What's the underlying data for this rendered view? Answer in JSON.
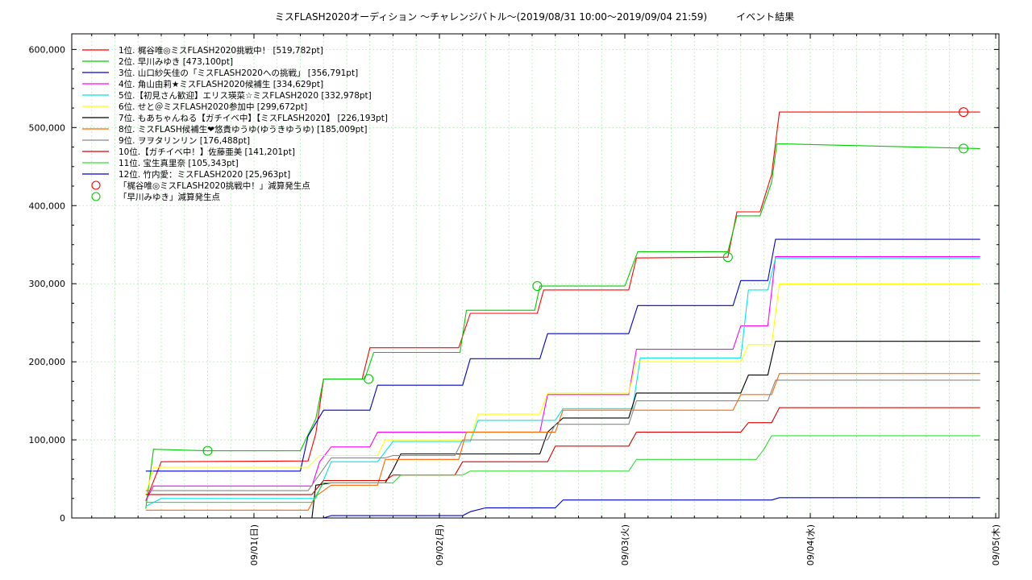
{
  "chart_data": {
    "type": "line",
    "title": "ミスFLASH2020オーディション 〜チャレンジバトル〜(2019/08/31 10:00〜2019/09/04 21:59)　　　イベント結果",
    "xlabel": "",
    "ylabel": "",
    "x_range": [
      "2019-08-31T00:25",
      "2019-09-05T00:25"
    ],
    "x_ticks": [
      {
        "x": "2019-09-01T00:00",
        "label": "09/01(日)"
      },
      {
        "x": "2019-09-02T00:00",
        "label": "09/02(月)"
      },
      {
        "x": "2019-09-03T00:00",
        "label": "09/03(火)"
      },
      {
        "x": "2019-09-04T00:00",
        "label": "09/04(水)"
      },
      {
        "x": "2019-09-05T00:00",
        "label": "09/05(木)"
      }
    ],
    "ylim": [
      0,
      620000
    ],
    "y_ticks": [
      {
        "y": 0,
        "label": "0"
      },
      {
        "y": 100000,
        "label": "100,000"
      },
      {
        "y": 200000,
        "label": "200,000"
      },
      {
        "y": 300000,
        "label": "300,000"
      },
      {
        "y": 400000,
        "label": "400,000"
      },
      {
        "y": 500000,
        "label": "500,000"
      },
      {
        "y": 600000,
        "label": "600,000"
      }
    ],
    "grid": true,
    "legend_position": "top-left",
    "series": [
      {
        "name": "1位. 梶谷唯◎ミスFLASH2020挑戦中！ [519,782pt]",
        "color": "#ff0000",
        "points": [
          [
            "2019-08-31T10:00",
            22000
          ],
          [
            "2019-08-31T12:00",
            72000
          ],
          [
            "2019-09-01T07:00",
            73000
          ],
          [
            "2019-09-01T08:00",
            108000
          ],
          [
            "2019-09-01T09:00",
            178000
          ],
          [
            "2019-09-01T14:00",
            178000
          ],
          [
            "2019-09-01T15:00",
            218000
          ],
          [
            "2019-09-02T02:30",
            218000
          ],
          [
            "2019-09-02T04:00",
            262000
          ],
          [
            "2019-09-02T12:40",
            262000
          ],
          [
            "2019-09-02T13:30",
            292000
          ],
          [
            "2019-09-03T00:30",
            292000
          ],
          [
            "2019-09-03T01:30",
            333000
          ],
          [
            "2019-09-03T13:20",
            334000
          ],
          [
            "2019-09-03T14:30",
            392000
          ],
          [
            "2019-09-03T17:30",
            392000
          ],
          [
            "2019-09-03T19:00",
            440000
          ],
          [
            "2019-09-03T20:00",
            519782
          ],
          [
            "2019-09-04T21:59",
            519782
          ]
        ]
      },
      {
        "name": "2位. 早川みゆき [473,100pt]",
        "color": "#00cc00",
        "points": [
          [
            "2019-08-31T10:00",
            12000
          ],
          [
            "2019-08-31T11:00",
            88000
          ],
          [
            "2019-08-31T18:00",
            86000
          ],
          [
            "2019-09-01T06:00",
            86000
          ],
          [
            "2019-09-01T08:00",
            127000
          ],
          [
            "2019-09-01T09:00",
            178000
          ],
          [
            "2019-09-01T14:20",
            178000
          ],
          [
            "2019-09-01T15:30",
            212000
          ],
          [
            "2019-09-02T02:40",
            212000
          ],
          [
            "2019-09-02T03:30",
            266000
          ],
          [
            "2019-09-02T12:20",
            266000
          ],
          [
            "2019-09-02T13:00",
            297000
          ],
          [
            "2019-09-03T00:00",
            297000
          ],
          [
            "2019-09-03T01:40",
            341000
          ],
          [
            "2019-09-03T13:20",
            341000
          ],
          [
            "2019-09-03T14:30",
            387000
          ],
          [
            "2019-09-03T17:30",
            387000
          ],
          [
            "2019-09-03T19:00",
            430000
          ],
          [
            "2019-09-03T19:40",
            479000
          ],
          [
            "2019-09-03T21:00",
            479000
          ],
          [
            "2019-09-04T21:59",
            473100
          ]
        ]
      },
      {
        "name": "3位. 山口紗矢佳の「ミスFLASH2020への挑戦」 [356,791pt]",
        "color": "#0000cc",
        "points": [
          [
            "2019-08-31T10:00",
            60000
          ],
          [
            "2019-09-01T06:00",
            60000
          ],
          [
            "2019-09-01T07:00",
            105000
          ],
          [
            "2019-09-01T09:00",
            138000
          ],
          [
            "2019-09-01T15:00",
            138000
          ],
          [
            "2019-09-01T16:00",
            170000
          ],
          [
            "2019-09-02T03:00",
            170000
          ],
          [
            "2019-09-02T04:00",
            204000
          ],
          [
            "2019-09-02T13:00",
            204000
          ],
          [
            "2019-09-02T14:00",
            236000
          ],
          [
            "2019-09-03T00:30",
            236000
          ],
          [
            "2019-09-03T01:40",
            272000
          ],
          [
            "2019-09-03T14:00",
            272000
          ],
          [
            "2019-09-03T15:00",
            304000
          ],
          [
            "2019-09-03T18:30",
            304000
          ],
          [
            "2019-09-03T19:30",
            356791
          ],
          [
            "2019-09-04T21:59",
            356791
          ]
        ]
      },
      {
        "name": "4位. 角山由莉★ミスFLASH2020候補生 [334,629pt]",
        "color": "#ff00ff",
        "points": [
          [
            "2019-08-31T10:00",
            22000
          ],
          [
            "2019-08-31T11:00",
            41000
          ],
          [
            "2019-09-01T07:30",
            41000
          ],
          [
            "2019-09-01T08:30",
            72000
          ],
          [
            "2019-09-01T10:00",
            91000
          ],
          [
            "2019-09-01T15:00",
            91000
          ],
          [
            "2019-09-01T16:00",
            110000
          ],
          [
            "2019-09-02T13:00",
            110000
          ],
          [
            "2019-09-02T14:00",
            158000
          ],
          [
            "2019-09-03T00:30",
            158000
          ],
          [
            "2019-09-03T01:30",
            216000
          ],
          [
            "2019-09-03T14:00",
            216000
          ],
          [
            "2019-09-03T15:00",
            246000
          ],
          [
            "2019-09-03T18:30",
            246000
          ],
          [
            "2019-09-03T19:30",
            334629
          ],
          [
            "2019-09-04T21:59",
            334629
          ]
        ]
      },
      {
        "name": "5位.【初見さん歓迎】エリス瑛菜☆ミスFLASH2020 [332,978pt]",
        "color": "#00e5ee",
        "points": [
          [
            "2019-08-31T10:00",
            15000
          ],
          [
            "2019-08-31T12:00",
            25000
          ],
          [
            "2019-09-01T08:00",
            25000
          ],
          [
            "2019-09-01T10:00",
            72000
          ],
          [
            "2019-09-01T16:00",
            72000
          ],
          [
            "2019-09-01T18:00",
            98000
          ],
          [
            "2019-09-02T04:00",
            98000
          ],
          [
            "2019-09-02T05:00",
            125000
          ],
          [
            "2019-09-02T15:00",
            125000
          ],
          [
            "2019-09-02T16:00",
            140000
          ],
          [
            "2019-09-03T01:00",
            140000
          ],
          [
            "2019-09-03T02:00",
            205000
          ],
          [
            "2019-09-03T15:00",
            205000
          ],
          [
            "2019-09-03T16:00",
            292000
          ],
          [
            "2019-09-03T18:30",
            292000
          ],
          [
            "2019-09-03T19:30",
            332978
          ],
          [
            "2019-09-04T21:59",
            332978
          ]
        ]
      },
      {
        "name": "6位. せと＠ミスFLASH2020参加中 [299,672pt]",
        "color": "#ffff00",
        "points": [
          [
            "2019-08-31T10:00",
            30000
          ],
          [
            "2019-08-31T11:00",
            65000
          ],
          [
            "2019-09-01T07:00",
            65000
          ],
          [
            "2019-09-01T08:30",
            80000
          ],
          [
            "2019-09-01T16:00",
            80000
          ],
          [
            "2019-09-01T17:00",
            100000
          ],
          [
            "2019-09-02T04:00",
            100000
          ],
          [
            "2019-09-02T05:00",
            133000
          ],
          [
            "2019-09-02T13:00",
            133000
          ],
          [
            "2019-09-02T14:00",
            160000
          ],
          [
            "2019-09-03T00:30",
            160000
          ],
          [
            "2019-09-03T01:30",
            200000
          ],
          [
            "2019-09-03T15:00",
            200000
          ],
          [
            "2019-09-03T16:00",
            222000
          ],
          [
            "2019-09-03T19:00",
            222000
          ],
          [
            "2019-09-03T20:00",
            299672
          ],
          [
            "2019-09-04T21:59",
            299672
          ]
        ]
      },
      {
        "name": "7位. もあちゃんねる【ガチイベ中】【ミスFLASH2020】 [226,193pt]",
        "color": "#000000",
        "points": [
          [
            "2019-09-01T07:30",
            0
          ],
          [
            "2019-09-01T08:00",
            42000
          ],
          [
            "2019-09-01T10:00",
            45000
          ],
          [
            "2019-09-01T17:00",
            45000
          ],
          [
            "2019-09-01T18:00",
            62000
          ],
          [
            "2019-09-01T19:00",
            82000
          ],
          [
            "2019-09-02T13:00",
            82000
          ],
          [
            "2019-09-02T14:00",
            110000
          ],
          [
            "2019-09-02T16:00",
            128000
          ],
          [
            "2019-09-03T00:30",
            128000
          ],
          [
            "2019-09-03T01:30",
            160000
          ],
          [
            "2019-09-03T15:00",
            160000
          ],
          [
            "2019-09-03T16:00",
            183000
          ],
          [
            "2019-09-03T18:30",
            183000
          ],
          [
            "2019-09-03T19:30",
            226193
          ],
          [
            "2019-09-04T21:59",
            226193
          ]
        ]
      },
      {
        "name": "8位. ミスFLASH候補生❤悠貴ゆうゆ(ゆうきゆうゆ) [185,009pt]",
        "color": "#ff6600",
        "points": [
          [
            "2019-08-31T10:00",
            10000
          ],
          [
            "2019-09-01T07:00",
            10000
          ],
          [
            "2019-09-01T08:00",
            28000
          ],
          [
            "2019-09-01T10:00",
            42000
          ],
          [
            "2019-09-01T16:00",
            42000
          ],
          [
            "2019-09-01T17:00",
            75000
          ],
          [
            "2019-09-02T02:30",
            75000
          ],
          [
            "2019-09-02T03:30",
            110000
          ],
          [
            "2019-09-02T15:00",
            110000
          ],
          [
            "2019-09-02T16:00",
            138000
          ],
          [
            "2019-09-03T14:00",
            138000
          ],
          [
            "2019-09-03T15:00",
            158000
          ],
          [
            "2019-09-03T19:00",
            158000
          ],
          [
            "2019-09-03T20:00",
            185009
          ],
          [
            "2019-09-04T21:59",
            185009
          ]
        ]
      },
      {
        "name": "9位. ヲヲタリンリン [176,488pt]",
        "color": "#888888",
        "points": [
          [
            "2019-08-31T10:00",
            35000
          ],
          [
            "2019-09-01T07:00",
            35000
          ],
          [
            "2019-09-01T08:30",
            56000
          ],
          [
            "2019-09-01T10:00",
            77000
          ],
          [
            "2019-09-01T17:00",
            77000
          ],
          [
            "2019-09-01T18:00",
            80000
          ],
          [
            "2019-09-02T02:00",
            80000
          ],
          [
            "2019-09-02T03:00",
            100000
          ],
          [
            "2019-09-02T14:00",
            100000
          ],
          [
            "2019-09-02T15:00",
            120000
          ],
          [
            "2019-09-03T00:30",
            120000
          ],
          [
            "2019-09-03T01:30",
            150000
          ],
          [
            "2019-09-03T18:30",
            150000
          ],
          [
            "2019-09-03T19:30",
            176488
          ],
          [
            "2019-09-04T21:59",
            176488
          ]
        ]
      },
      {
        "name": "10位.【ガチイベ中！】佐藤亜美 [141,201pt]",
        "color": "#dd0000",
        "points": [
          [
            "2019-08-31T10:00",
            30000
          ],
          [
            "2019-09-01T07:30",
            30000
          ],
          [
            "2019-09-01T09:00",
            48000
          ],
          [
            "2019-09-01T17:00",
            48000
          ],
          [
            "2019-09-01T18:00",
            55000
          ],
          [
            "2019-09-02T02:00",
            55000
          ],
          [
            "2019-09-02T03:00",
            72000
          ],
          [
            "2019-09-02T14:00",
            72000
          ],
          [
            "2019-09-02T15:00",
            92000
          ],
          [
            "2019-09-03T00:30",
            92000
          ],
          [
            "2019-09-03T01:30",
            110000
          ],
          [
            "2019-09-03T15:00",
            110000
          ],
          [
            "2019-09-03T16:00",
            122000
          ],
          [
            "2019-09-03T19:00",
            122000
          ],
          [
            "2019-09-03T20:00",
            141201
          ],
          [
            "2019-09-04T21:59",
            141201
          ]
        ]
      },
      {
        "name": "11位. 宝生真里奈 [105,343pt]",
        "color": "#33dd33",
        "points": [
          [
            "2019-08-31T10:00",
            20000
          ],
          [
            "2019-09-01T07:30",
            20000
          ],
          [
            "2019-09-01T09:00",
            45000
          ],
          [
            "2019-09-01T18:00",
            45000
          ],
          [
            "2019-09-01T19:00",
            55000
          ],
          [
            "2019-09-02T03:00",
            55000
          ],
          [
            "2019-09-02T04:00",
            60000
          ],
          [
            "2019-09-03T00:30",
            60000
          ],
          [
            "2019-09-03T01:30",
            75000
          ],
          [
            "2019-09-03T17:00",
            75000
          ],
          [
            "2019-09-03T18:00",
            88000
          ],
          [
            "2019-09-03T19:00",
            105343
          ],
          [
            "2019-09-04T21:59",
            105343
          ]
        ]
      },
      {
        "name": "12位. 竹内愛：ミスFLASH2020 [25,963pt]",
        "color": "#0000cc",
        "points": [
          [
            "2019-09-01T09:00",
            0
          ],
          [
            "2019-09-01T10:00",
            3000
          ],
          [
            "2019-09-02T03:00",
            3000
          ],
          [
            "2019-09-02T04:00",
            8000
          ],
          [
            "2019-09-02T06:00",
            13000
          ],
          [
            "2019-09-02T15:00",
            13000
          ],
          [
            "2019-09-02T16:00",
            23000
          ],
          [
            "2019-09-03T19:00",
            23000
          ],
          [
            "2019-09-03T20:00",
            25963
          ],
          [
            "2019-09-04T21:59",
            25963
          ]
        ]
      }
    ],
    "markers": [
      {
        "name": "「梶谷唯◎ミスFLASH2020挑戦中！」減算発生点",
        "color": "#ff0000",
        "points": [
          [
            "2019-09-04T19:50",
            519782
          ]
        ]
      },
      {
        "name": "「早川みゆき」減算発生点",
        "color": "#00cc00",
        "points": [
          [
            "2019-08-31T18:00",
            86000
          ],
          [
            "2019-09-01T14:50",
            178000
          ],
          [
            "2019-09-02T12:40",
            297000
          ],
          [
            "2019-09-03T13:20",
            334000
          ],
          [
            "2019-09-04T19:50",
            473100
          ]
        ]
      }
    ]
  }
}
